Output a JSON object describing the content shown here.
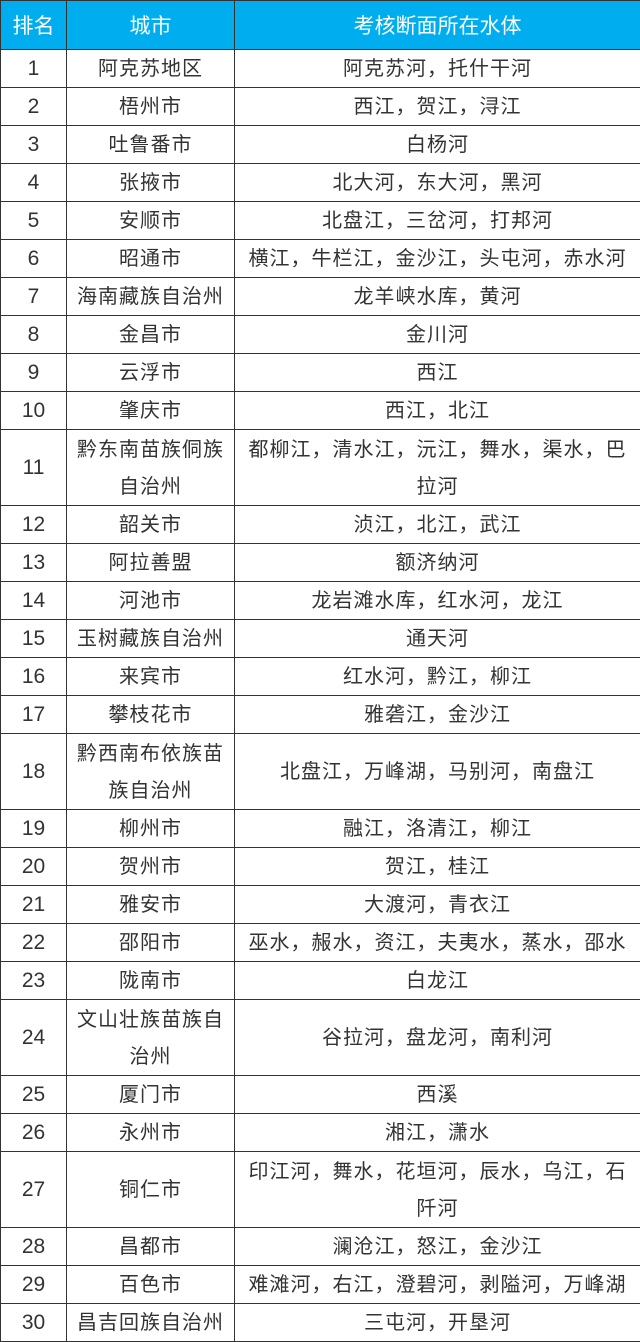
{
  "table": {
    "header_color": "#00aeef",
    "headers": [
      "排名",
      "城市",
      "考核断面所在水体"
    ],
    "rows": [
      {
        "rank": "1",
        "city": "阿克苏地区",
        "water": "阿克苏河，托什干河"
      },
      {
        "rank": "2",
        "city": "梧州市",
        "water": "西江，贺江，浔江"
      },
      {
        "rank": "3",
        "city": "吐鲁番市",
        "water": "白杨河"
      },
      {
        "rank": "4",
        "city": "张掖市",
        "water": "北大河，东大河，黑河"
      },
      {
        "rank": "5",
        "city": "安顺市",
        "water": "北盘江，三岔河，打邦河"
      },
      {
        "rank": "6",
        "city": "昭通市",
        "water": "横江，牛栏江，金沙江，头屯河，赤水河"
      },
      {
        "rank": "7",
        "city": "海南藏族自治州",
        "water": "龙羊峡水库，黄河"
      },
      {
        "rank": "8",
        "city": "金昌市",
        "water": "金川河"
      },
      {
        "rank": "9",
        "city": "云浮市",
        "water": "西江"
      },
      {
        "rank": "10",
        "city": "肇庆市",
        "water": "西江，北江"
      },
      {
        "rank": "11",
        "city": "黔东南苗族侗族自治州",
        "water": "都柳江，清水江，沅江，舞水，渠水，巴拉河"
      },
      {
        "rank": "12",
        "city": "韶关市",
        "water": "浈江，北江，武江"
      },
      {
        "rank": "13",
        "city": "阿拉善盟",
        "water": "额济纳河"
      },
      {
        "rank": "14",
        "city": "河池市",
        "water": "龙岩滩水库，红水河，龙江"
      },
      {
        "rank": "15",
        "city": "玉树藏族自治州",
        "water": "通天河"
      },
      {
        "rank": "16",
        "city": "来宾市",
        "water": "红水河，黔江，柳江"
      },
      {
        "rank": "17",
        "city": "攀枝花市",
        "water": "雅砻江，金沙江"
      },
      {
        "rank": "18",
        "city": "黔西南布依族苗族自治州",
        "water": "北盘江，万峰湖，马别河，南盘江"
      },
      {
        "rank": "19",
        "city": "柳州市",
        "water": "融江，洛清江，柳江"
      },
      {
        "rank": "20",
        "city": "贺州市",
        "water": "贺江，桂江"
      },
      {
        "rank": "21",
        "city": "雅安市",
        "water": "大渡河，青衣江"
      },
      {
        "rank": "22",
        "city": "邵阳市",
        "water": "巫水，赧水，资江，夫夷水，蒸水，邵水"
      },
      {
        "rank": "23",
        "city": "陇南市",
        "water": "白龙江"
      },
      {
        "rank": "24",
        "city": "文山壮族苗族自治州",
        "water": "谷拉河，盘龙河，南利河"
      },
      {
        "rank": "25",
        "city": "厦门市",
        "water": "西溪"
      },
      {
        "rank": "26",
        "city": "永州市",
        "water": "湘江，潇水"
      },
      {
        "rank": "27",
        "city": "铜仁市",
        "water": "印江河，舞水，花垣河，辰水，乌江，石阡河"
      },
      {
        "rank": "28",
        "city": "昌都市",
        "water": "澜沧江，怒江，金沙江"
      },
      {
        "rank": "29",
        "city": "百色市",
        "water": "难滩河，右江，澄碧河，剥隘河，万峰湖"
      },
      {
        "rank": "30",
        "city": "昌吉回族自治州",
        "water": "三屯河，开垦河"
      }
    ]
  }
}
